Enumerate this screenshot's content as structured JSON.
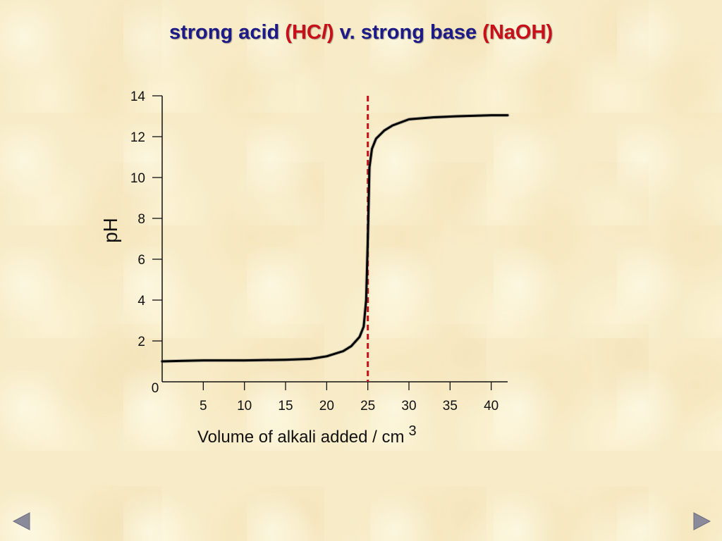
{
  "slide": {
    "title": {
      "part1": "strong acid ",
      "part2": "(HC",
      "part3": "l",
      "part4": ")",
      "part5": " v. strong base ",
      "part6": "(NaOH)"
    },
    "colors": {
      "title_blue": "#1c1a86",
      "title_red": "#c8101a",
      "curve": "#000000",
      "equivalence_line": "#c8101a",
      "nav_arrow": "#8a8a9a"
    }
  },
  "navigation": {
    "prev_icon": "left-triangle-icon",
    "next_icon": "right-triangle-icon"
  },
  "chart_data": {
    "type": "line",
    "title": "",
    "xlabel": "Volume of alkali added / cm",
    "xlabel_superscript": "3",
    "ylabel": "pH",
    "xlim": [
      0,
      42
    ],
    "ylim": [
      0,
      14
    ],
    "x_ticks": [
      5,
      10,
      15,
      20,
      25,
      30,
      35,
      40
    ],
    "y_ticks": [
      2,
      4,
      6,
      8,
      10,
      12,
      14
    ],
    "origin_label": "0",
    "grid": false,
    "legend": "none",
    "equivalence_point_x": 25,
    "series": [
      {
        "x": [
          0,
          5,
          10,
          15,
          18,
          20,
          22,
          23,
          24,
          24.5,
          24.8,
          25.0,
          25.2,
          25.5,
          26,
          27,
          28,
          30,
          33,
          36,
          40,
          42
        ],
        "y": [
          1.0,
          1.05,
          1.05,
          1.08,
          1.12,
          1.25,
          1.5,
          1.75,
          2.2,
          2.7,
          4.0,
          7.0,
          10.5,
          11.4,
          11.9,
          12.3,
          12.55,
          12.85,
          12.95,
          13.0,
          13.05,
          13.05
        ]
      }
    ]
  }
}
